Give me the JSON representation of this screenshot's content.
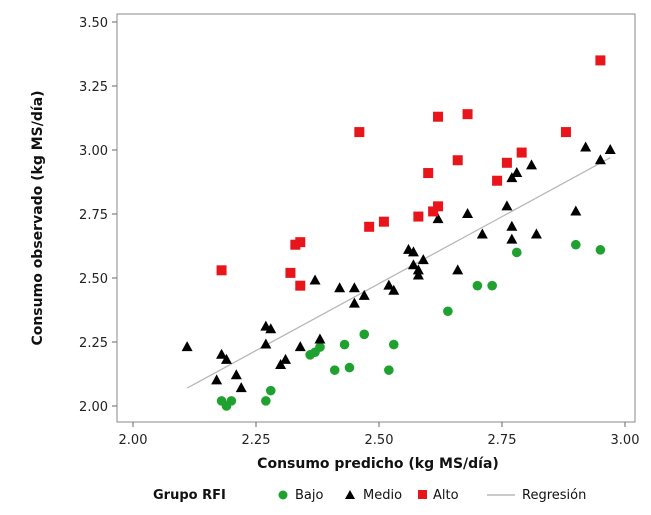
{
  "chart_data": {
    "type": "scatter",
    "xlabel": "Consumo predicho (kg MS/día)",
    "ylabel": "Consumo observado (kg MS/día)",
    "xlim": [
      2.0,
      3.0
    ],
    "ylim": [
      2.0,
      3.5
    ],
    "xticks": [
      "2.00",
      "2.25",
      "2.50",
      "2.75",
      "3.00"
    ],
    "yticks": [
      "2.00",
      "2.25",
      "2.50",
      "2.75",
      "3.00",
      "3.25",
      "3.50"
    ],
    "grid": false,
    "legend_position": "bottom",
    "legend_title": "Grupo RFI",
    "series": [
      {
        "name": "Bajo",
        "marker": "circle",
        "color": "#1fa12f",
        "points": [
          [
            2.18,
            2.02
          ],
          [
            2.19,
            2.0
          ],
          [
            2.2,
            2.02
          ],
          [
            2.27,
            2.02
          ],
          [
            2.28,
            2.06
          ],
          [
            2.36,
            2.2
          ],
          [
            2.37,
            2.21
          ],
          [
            2.38,
            2.23
          ],
          [
            2.41,
            2.14
          ],
          [
            2.43,
            2.24
          ],
          [
            2.44,
            2.15
          ],
          [
            2.47,
            2.28
          ],
          [
            2.52,
            2.14
          ],
          [
            2.53,
            2.24
          ],
          [
            2.64,
            2.37
          ],
          [
            2.7,
            2.47
          ],
          [
            2.73,
            2.47
          ],
          [
            2.78,
            2.6
          ],
          [
            2.9,
            2.63
          ],
          [
            2.95,
            2.61
          ]
        ]
      },
      {
        "name": "Medio",
        "marker": "triangle",
        "color": "#000000",
        "points": [
          [
            2.11,
            2.23
          ],
          [
            2.17,
            2.1
          ],
          [
            2.18,
            2.2
          ],
          [
            2.19,
            2.18
          ],
          [
            2.21,
            2.12
          ],
          [
            2.22,
            2.07
          ],
          [
            2.27,
            2.31
          ],
          [
            2.27,
            2.24
          ],
          [
            2.28,
            2.3
          ],
          [
            2.3,
            2.16
          ],
          [
            2.31,
            2.18
          ],
          [
            2.34,
            2.23
          ],
          [
            2.37,
            2.49
          ],
          [
            2.38,
            2.26
          ],
          [
            2.42,
            2.46
          ],
          [
            2.45,
            2.46
          ],
          [
            2.45,
            2.4
          ],
          [
            2.47,
            2.43
          ],
          [
            2.52,
            2.47
          ],
          [
            2.53,
            2.45
          ],
          [
            2.56,
            2.61
          ],
          [
            2.57,
            2.6
          ],
          [
            2.57,
            2.55
          ],
          [
            2.58,
            2.53
          ],
          [
            2.58,
            2.51
          ],
          [
            2.59,
            2.57
          ],
          [
            2.62,
            2.73
          ],
          [
            2.66,
            2.53
          ],
          [
            2.68,
            2.75
          ],
          [
            2.71,
            2.67
          ],
          [
            2.76,
            2.78
          ],
          [
            2.77,
            2.65
          ],
          [
            2.77,
            2.7
          ],
          [
            2.77,
            2.89
          ],
          [
            2.78,
            2.91
          ],
          [
            2.81,
            2.94
          ],
          [
            2.82,
            2.67
          ],
          [
            2.9,
            2.76
          ],
          [
            2.92,
            3.01
          ],
          [
            2.95,
            2.96
          ],
          [
            2.97,
            3.0
          ]
        ]
      },
      {
        "name": "Alto",
        "marker": "square",
        "color": "#e8161b",
        "points": [
          [
            2.18,
            2.53
          ],
          [
            2.32,
            2.52
          ],
          [
            2.33,
            2.63
          ],
          [
            2.34,
            2.47
          ],
          [
            2.34,
            2.64
          ],
          [
            2.46,
            3.07
          ],
          [
            2.48,
            2.7
          ],
          [
            2.51,
            2.72
          ],
          [
            2.58,
            2.74
          ],
          [
            2.6,
            2.91
          ],
          [
            2.61,
            2.76
          ],
          [
            2.62,
            2.78
          ],
          [
            2.62,
            3.13
          ],
          [
            2.66,
            2.96
          ],
          [
            2.68,
            3.14
          ],
          [
            2.74,
            2.88
          ],
          [
            2.76,
            2.95
          ],
          [
            2.79,
            2.99
          ],
          [
            2.88,
            3.07
          ],
          [
            2.95,
            3.35
          ]
        ]
      }
    ],
    "regression": {
      "name": "Regresión",
      "color": "#b8b8b8",
      "x": [
        2.11,
        2.97
      ],
      "y": [
        2.07,
        2.97
      ]
    }
  }
}
